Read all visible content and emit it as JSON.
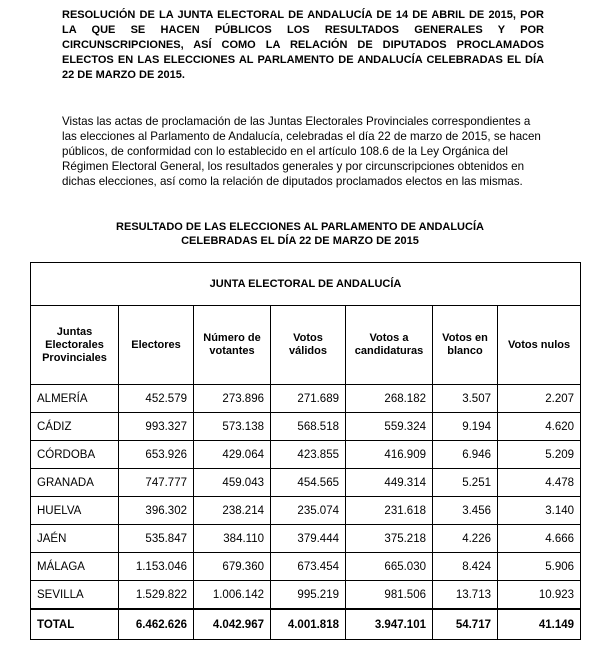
{
  "header": {
    "title": "RESOLUCIÓN DE LA JUNTA ELECTORAL DE ANDALUCÍA DE 14 DE ABRIL DE 2015, POR LA QUE SE HACEN PÚBLICOS LOS RESULTADOS GENERALES Y POR CIRCUNSCRIPCIONES, ASÍ COMO LA RELACIÓN DE DIPUTADOS PROCLAMADOS ELECTOS EN LAS ELECCIONES AL PARLAMENTO DE ANDALUCÍA CELEBRADAS EL DÍA 22 DE MARZO DE 2015."
  },
  "body": {
    "paragraph": "Vistas las actas de proclamación de las Juntas Electorales Provinciales correspondientes a las elecciones al Parlamento de Andalucía, celebradas el día 22 de marzo de 2015, se hacen públicos, de conformidad con lo establecido en el artículo 108.6 de la Ley Orgánica del Régimen Electoral General, los resultados generales y por circunscripciones obtenidos en dichas elecciones, así como la relación de diputados proclamados electos en las mismas.",
    "table_title_1": "RESULTADO DE LAS ELECCIONES AL PARLAMENTO DE ANDALUCÍA",
    "table_title_2": "CELEBRADAS EL DÍA 22 DE MARZO DE 2015"
  },
  "table": {
    "caption": "JUNTA ELECTORAL DE ANDALUCÍA",
    "columns": [
      "Juntas Electorales Provinciales",
      "Electores",
      "Número de votantes",
      "Votos válidos",
      "Votos a candidaturas",
      "Votos en blanco",
      "Votos nulos"
    ],
    "rows": [
      [
        "ALMERÍA",
        "452.579",
        "273.896",
        "271.689",
        "268.182",
        "3.507",
        "2.207"
      ],
      [
        "CÁDIZ",
        "993.327",
        "573.138",
        "568.518",
        "559.324",
        "9.194",
        "4.620"
      ],
      [
        "CÓRDOBA",
        "653.926",
        "429.064",
        "423.855",
        "416.909",
        "6.946",
        "5.209"
      ],
      [
        "GRANADA",
        "747.777",
        "459.043",
        "454.565",
        "449.314",
        "5.251",
        "4.478"
      ],
      [
        "HUELVA",
        "396.302",
        "238.214",
        "235.074",
        "231.618",
        "3.456",
        "3.140"
      ],
      [
        "JAÉN",
        "535.847",
        "384.110",
        "379.444",
        "375.218",
        "4.226",
        "4.666"
      ],
      [
        "MÁLAGA",
        "1.153.046",
        "679.360",
        "673.454",
        "665.030",
        "8.424",
        "5.906"
      ],
      [
        "SEVILLA",
        "1.529.822",
        "1.006.142",
        "995.219",
        "981.506",
        "13.713",
        "10.923"
      ]
    ],
    "total": [
      "TOTAL",
      "6.462.626",
      "4.042.967",
      "4.001.818",
      "3.947.101",
      "54.717",
      "41.149"
    ]
  }
}
